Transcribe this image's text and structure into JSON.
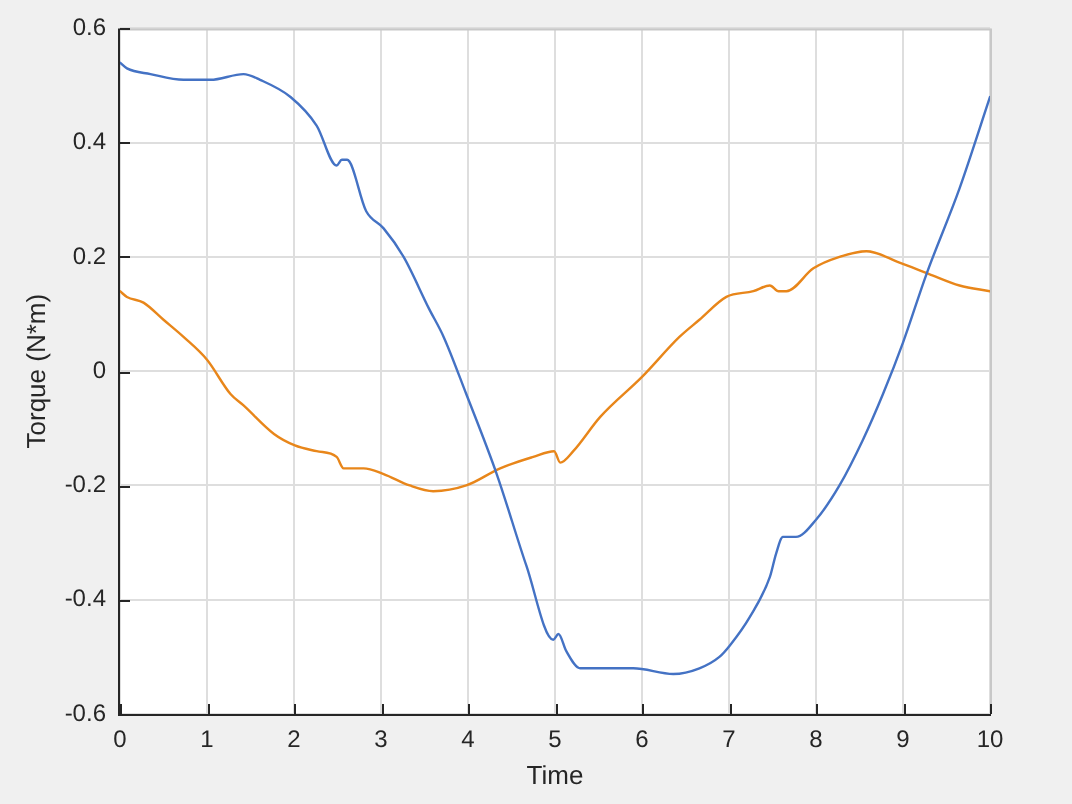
{
  "chart_data": {
    "type": "line",
    "xlabel": "Time",
    "ylabel": "Torque (N*m)",
    "xlim": [
      0,
      10
    ],
    "ylim": [
      -0.6,
      0.6
    ],
    "xticks": [
      0,
      1,
      2,
      3,
      4,
      5,
      6,
      7,
      8,
      9,
      10
    ],
    "yticks": [
      -0.6,
      -0.4,
      -0.2,
      0,
      0.2,
      0.4,
      0.6
    ],
    "grid": true,
    "series": [
      {
        "color": "#4472c4",
        "x": [
          0,
          0.08,
          0.35,
          0.73,
          1.04,
          1.42,
          1.61,
          1.96,
          2.26,
          2.49,
          2.55,
          2.61,
          2.83,
          3.03,
          3.26,
          3.55,
          3.72,
          3.98,
          4.33,
          4.67,
          4.98,
          5.04,
          5.13,
          5.29,
          5.44,
          5.9,
          6.36,
          6.66,
          6.89,
          7.01,
          7.24,
          7.47,
          7.54,
          7.62,
          7.77,
          8,
          8.27,
          8.54,
          8.77,
          9,
          9.27,
          9.65,
          10
        ],
        "values": [
          0.54,
          0.53,
          0.52,
          0.51,
          0.51,
          0.52,
          0.51,
          0.48,
          0.43,
          0.36,
          0.37,
          0.37,
          0.28,
          0.25,
          0.2,
          0.11,
          0.06,
          -0.04,
          -0.18,
          -0.34,
          -0.47,
          -0.46,
          -0.49,
          -0.52,
          -0.52,
          -0.52,
          -0.53,
          -0.52,
          -0.5,
          -0.48,
          -0.43,
          -0.36,
          -0.32,
          -0.29,
          -0.29,
          -0.26,
          -0.2,
          -0.12,
          -0.04,
          0.05,
          0.17,
          0.32,
          0.48
        ]
      },
      {
        "color": "#e8861a",
        "x": [
          0,
          0.08,
          0.27,
          0.5,
          0.73,
          1,
          1.27,
          1.42,
          1.77,
          2.01,
          2.26,
          2.49,
          2.57,
          2.8,
          3.03,
          3.33,
          3.6,
          3.98,
          4.37,
          4.75,
          4.99,
          5.06,
          5.21,
          5.52,
          6,
          6.43,
          6.66,
          6.97,
          7.28,
          7.47,
          7.57,
          7.66,
          7.97,
          8.27,
          8.58,
          8.96,
          9.3,
          9.65,
          10
        ],
        "values": [
          0.14,
          0.13,
          0.12,
          0.09,
          0.06,
          0.02,
          -0.04,
          -0.06,
          -0.11,
          -0.13,
          -0.14,
          -0.15,
          -0.17,
          -0.17,
          -0.18,
          -0.2,
          -0.21,
          -0.2,
          -0.17,
          -0.15,
          -0.14,
          -0.16,
          -0.14,
          -0.08,
          -0.01,
          0.06,
          0.09,
          0.13,
          0.14,
          0.15,
          0.14,
          0.14,
          0.18,
          0.2,
          0.21,
          0.19,
          0.17,
          0.15,
          0.14
        ]
      }
    ]
  }
}
